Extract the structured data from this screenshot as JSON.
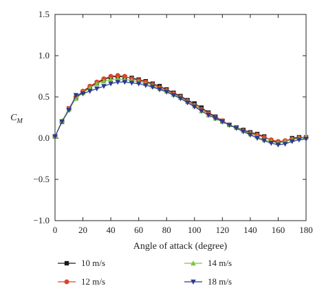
{
  "chart_data": {
    "type": "line",
    "xlabel": "Angle of attack (degree)",
    "ylabel": "C",
    "ylabel_sub": "M",
    "xlim": [
      0,
      180
    ],
    "ylim": [
      -1.0,
      1.5
    ],
    "x_ticks": [
      0,
      20,
      40,
      60,
      80,
      100,
      120,
      140,
      160,
      180
    ],
    "y_ticks": [
      -1.0,
      -0.5,
      0.0,
      0.5,
      1.0,
      1.5
    ],
    "y_tick_labels": [
      "−1.0",
      "−0.5",
      "0.0",
      "0.5",
      "1.0",
      "1.5"
    ],
    "x": [
      0,
      5,
      10,
      15,
      20,
      25,
      30,
      35,
      40,
      45,
      50,
      55,
      60,
      65,
      70,
      75,
      80,
      85,
      90,
      95,
      100,
      105,
      110,
      115,
      120,
      125,
      130,
      135,
      140,
      145,
      150,
      155,
      160,
      165,
      170,
      175,
      180
    ],
    "legend_position": "bottom",
    "series": [
      {
        "name": "10 m/s",
        "color": "#1a1a1a",
        "marker": "square",
        "values": [
          0.02,
          0.2,
          0.36,
          0.49,
          0.56,
          0.62,
          0.67,
          0.71,
          0.74,
          0.75,
          0.74,
          0.73,
          0.71,
          0.69,
          0.66,
          0.63,
          0.59,
          0.55,
          0.51,
          0.46,
          0.42,
          0.37,
          0.31,
          0.26,
          0.21,
          0.16,
          0.13,
          0.1,
          0.07,
          0.05,
          0.02,
          -0.03,
          -0.05,
          -0.04,
          0.0,
          0.01,
          0.01
        ]
      },
      {
        "name": "12 m/s",
        "color": "#d9442b",
        "marker": "circle",
        "values": [
          0.02,
          0.2,
          0.36,
          0.5,
          0.57,
          0.63,
          0.68,
          0.72,
          0.75,
          0.76,
          0.75,
          0.72,
          0.7,
          0.68,
          0.65,
          0.61,
          0.58,
          0.54,
          0.5,
          0.45,
          0.4,
          0.35,
          0.3,
          0.25,
          0.21,
          0.16,
          0.13,
          0.09,
          0.06,
          0.04,
          0.01,
          -0.02,
          -0.04,
          -0.03,
          -0.01,
          0.0,
          0.01
        ]
      },
      {
        "name": "14 m/s",
        "color": "#7dc242",
        "marker": "triangle-up",
        "values": [
          0.02,
          0.21,
          0.35,
          0.48,
          0.55,
          0.61,
          0.66,
          0.69,
          0.71,
          0.72,
          0.71,
          0.7,
          0.68,
          0.66,
          0.63,
          0.6,
          0.57,
          0.53,
          0.49,
          0.44,
          0.39,
          0.33,
          0.28,
          0.24,
          0.2,
          0.16,
          0.13,
          0.09,
          0.05,
          0.02,
          -0.02,
          -0.04,
          -0.06,
          -0.04,
          -0.02,
          0.0,
          0.01
        ]
      },
      {
        "name": "18 m/s",
        "color": "#2b3a8f",
        "marker": "triangle-down",
        "values": [
          0.02,
          0.2,
          0.34,
          0.52,
          0.54,
          0.57,
          0.6,
          0.63,
          0.66,
          0.68,
          0.68,
          0.67,
          0.66,
          0.64,
          0.62,
          0.59,
          0.56,
          0.52,
          0.48,
          0.43,
          0.38,
          0.33,
          0.28,
          0.24,
          0.2,
          0.16,
          0.12,
          0.08,
          0.04,
          0.0,
          -0.03,
          -0.06,
          -0.08,
          -0.07,
          -0.04,
          -0.02,
          -0.01
        ]
      }
    ]
  }
}
